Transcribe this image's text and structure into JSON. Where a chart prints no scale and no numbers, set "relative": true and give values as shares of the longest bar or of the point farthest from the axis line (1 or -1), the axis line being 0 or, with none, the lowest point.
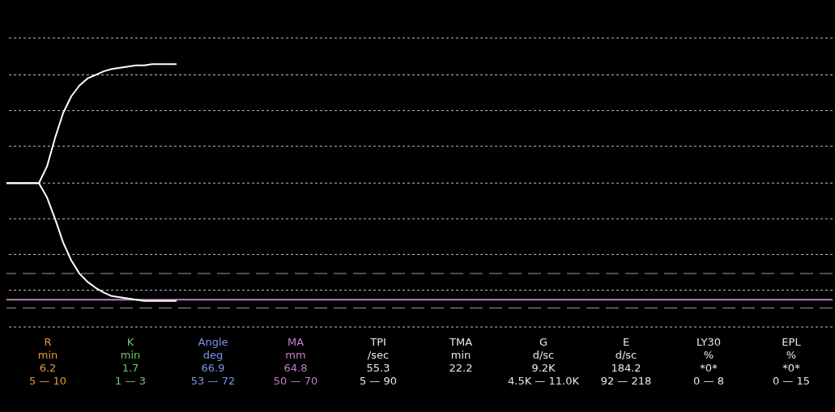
{
  "chart_data": {
    "type": "line",
    "relative": true,
    "line_style": "solid",
    "marker": "none",
    "categories": [
      null,
      null,
      null,
      null,
      null,
      null,
      null,
      null,
      null,
      null,
      null,
      null,
      null,
      null,
      null,
      null,
      null,
      null,
      null,
      null,
      null,
      null,
      null,
      null,
      null,
      null,
      null,
      null,
      null,
      null,
      null,
      null,
      null,
      null,
      null,
      null,
      null,
      null,
      null,
      null,
      null,
      null,
      null,
      null,
      null,
      null,
      null,
      null,
      null,
      null,
      null,
      null,
      null,
      null,
      null,
      null,
      null,
      null,
      null,
      null,
      null,
      null,
      null,
      null,
      null,
      null,
      null,
      null,
      null,
      null,
      null,
      null,
      null,
      null,
      null,
      null,
      null,
      null,
      null,
      null,
      null,
      null,
      null,
      null,
      null,
      null,
      null,
      null,
      null,
      null,
      null,
      null,
      null,
      null,
      null,
      null,
      null,
      null,
      null,
      null,
      null,
      null,
      null
    ],
    "series": [
      {
        "color": "#ffffff",
        "values": [
          0,
          0,
          0,
          0,
          0,
          0.14,
          0.38,
          0.59,
          0.73,
          0.82,
          0.88,
          0.91,
          0.94,
          0.96,
          0.97,
          0.98,
          0.99,
          0.99,
          1,
          1,
          1,
          1,
          null,
          null,
          null,
          null,
          null,
          null,
          null,
          null,
          null,
          null,
          null,
          null,
          null,
          null,
          null,
          null,
          null,
          null,
          null,
          null,
          null,
          null,
          null,
          null,
          null,
          null,
          null,
          null,
          null,
          null,
          null,
          null,
          null,
          null,
          null,
          null,
          null,
          null,
          null,
          null,
          null,
          null,
          null,
          null,
          null,
          null,
          null,
          null,
          null,
          null,
          null,
          null,
          null,
          null,
          null,
          null,
          null,
          null,
          null,
          null,
          null,
          null,
          null,
          null,
          null,
          null,
          null,
          null,
          null,
          null,
          null,
          null,
          null,
          null,
          null,
          null,
          null,
          null,
          null,
          null,
          null
        ]
      },
      {
        "color": "#ffffff",
        "values": [
          0,
          0,
          0,
          0,
          0,
          -0.12,
          -0.3,
          -0.5,
          -0.65,
          -0.76,
          -0.83,
          -0.88,
          -0.92,
          -0.95,
          -0.96,
          -0.97,
          -0.98,
          -0.99,
          -0.99,
          -0.99,
          -0.99,
          -0.99,
          null,
          null,
          null,
          null,
          null,
          null,
          null,
          null,
          null,
          null,
          null,
          null,
          null,
          null,
          null,
          null,
          null,
          null,
          null,
          null,
          null,
          null,
          null,
          null,
          null,
          null,
          null,
          null,
          null,
          null,
          null,
          null,
          null,
          null,
          null,
          null,
          null,
          null,
          null,
          null,
          null,
          null,
          null,
          null,
          null,
          null,
          null,
          null,
          null,
          null,
          null,
          null,
          null,
          null,
          null,
          null,
          null,
          null,
          null,
          null,
          null,
          null,
          null,
          null,
          null,
          null,
          null,
          null,
          null,
          null,
          null,
          null,
          null,
          null,
          null,
          null,
          null,
          null,
          null,
          null,
          null
        ]
      }
    ],
    "ref_lines": [
      {
        "axis": "y",
        "value": 1.22,
        "color": "#bdbdbd",
        "line_style": "dotted"
      },
      {
        "axis": "y",
        "value": 0.91,
        "color": "#bdbdbd",
        "line_style": "dotted"
      },
      {
        "axis": "y",
        "value": 0.61,
        "color": "#bdbdbd",
        "line_style": "dotted"
      },
      {
        "axis": "y",
        "value": 0.31,
        "color": "#bdbdbd",
        "line_style": "dotted"
      },
      {
        "axis": "y",
        "value": 0,
        "color": "#bdbdbd",
        "line_style": "dotted"
      },
      {
        "axis": "y",
        "value": -0.3,
        "color": "#bdbdbd",
        "line_style": "dotted"
      },
      {
        "axis": "y",
        "value": -0.6,
        "color": "#bdbdbd",
        "line_style": "dotted"
      },
      {
        "axis": "y",
        "value": -0.9,
        "color": "#bdbdbd",
        "line_style": "dotted"
      },
      {
        "axis": "y",
        "value": -1.21,
        "color": "#bdbdbd",
        "line_style": "dotted"
      },
      {
        "axis": "y",
        "value": -0.76,
        "color": "#b784bd",
        "line_style": "dashed"
      },
      {
        "axis": "y",
        "value": -0.98,
        "color": "#b784bd",
        "line_style": "solid"
      },
      {
        "axis": "y",
        "value": -1.05,
        "color": "#b784bd",
        "line_style": "dashed"
      }
    ],
    "annotations": [
      "R\nmin\n6.2\n5 — 10",
      "K\nmin\n1.7\n1 — 3",
      "Angle\ndeg\n66.9\n53 — 72",
      "MA\nmm\n64.8\n50 — 70",
      "TPI\n/sec\n55.3\n5 — 90",
      "TMA\nmin\n22.2",
      "G\nd/sc\n9.2K\n4.5K — 11.0K",
      "E\nd/sc\n184.2\n92 — 218",
      "LY30\n%\n*0*\n0 — 8",
      "EPL\n%\n*0*\n0 — 15"
    ]
  }
}
